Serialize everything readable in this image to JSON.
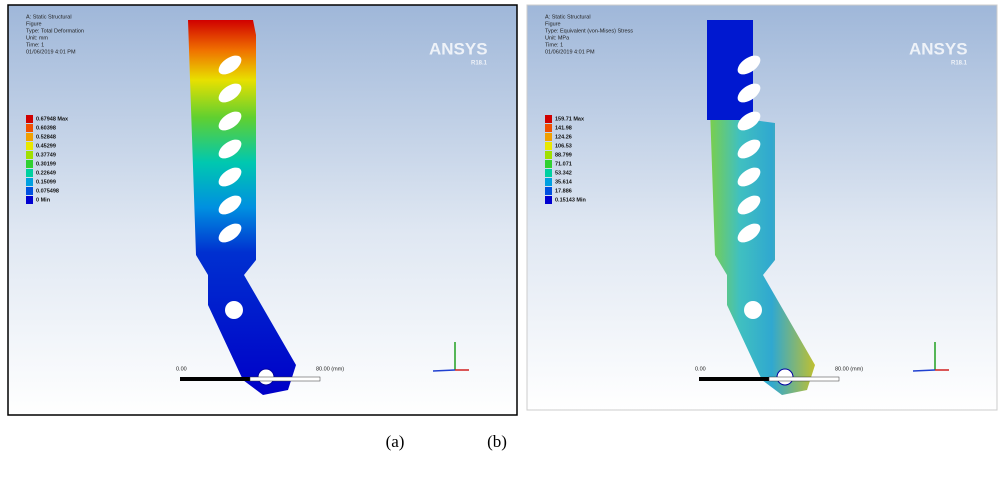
{
  "panels": [
    {
      "header": [
        "A: Static Structural",
        "Figure",
        "Type: Total Deformation",
        "Unit: mm",
        "Time: 1",
        "01/06/2019 4:01 PM"
      ],
      "legend": [
        "0.67948 Max",
        "0.60398",
        "0.52848",
        "0.45299",
        "0.37749",
        "0.30199",
        "0.22649",
        "0.15099",
        "0.075498",
        "0 Min"
      ],
      "brand": "ANSYS",
      "version": "R18.1",
      "scale_start": "0.00",
      "scale_end": "80.00 (mm)",
      "caption": "(a)"
    },
    {
      "header": [
        "A: Static Structural",
        "Figure",
        "Type: Equivalent (von-Mises) Stress",
        "Unit: MPa",
        "Time: 1",
        "01/06/2019 4:01 PM"
      ],
      "legend": [
        "159.71 Max",
        "141.98",
        "124.26",
        "106.53",
        "88.799",
        "71.071",
        "53.342",
        "35.614",
        "17.886",
        "0.15143 Min"
      ],
      "brand": "ANSYS",
      "version": "R18.1",
      "scale_start": "0.00",
      "scale_end": "80.00 (mm)",
      "caption": "(b)"
    }
  ]
}
